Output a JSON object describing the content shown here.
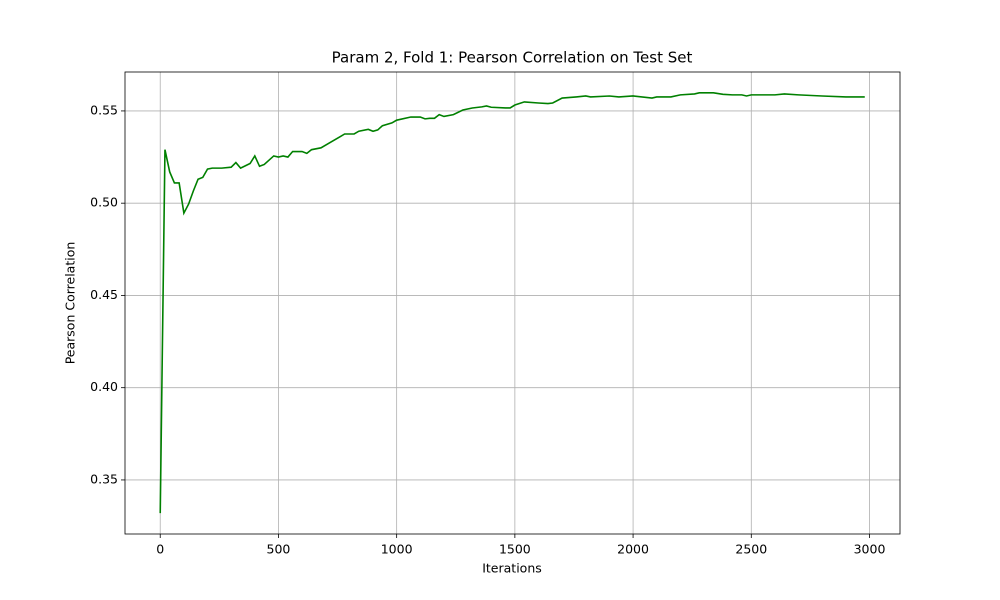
{
  "chart_data": {
    "type": "line",
    "title": "Param 2, Fold 1: Pearson Correlation on Test Set",
    "x_label": "Iterations",
    "y_label": "Pearson Correlation",
    "grid": true,
    "x": [
      0,
      20,
      40,
      60,
      80,
      100,
      120,
      140,
      160,
      180,
      200,
      220,
      260,
      300,
      320,
      340,
      380,
      400,
      420,
      440,
      480,
      500,
      520,
      540,
      560,
      600,
      620,
      640,
      680,
      720,
      760,
      780,
      820,
      840,
      880,
      900,
      920,
      940,
      980,
      1000,
      1060,
      1100,
      1120,
      1140,
      1160,
      1180,
      1200,
      1240,
      1280,
      1320,
      1360,
      1380,
      1400,
      1460,
      1480,
      1500,
      1540,
      1600,
      1640,
      1660,
      1700,
      1760,
      1800,
      1820,
      1900,
      1940,
      2000,
      2080,
      2100,
      2160,
      2200,
      2260,
      2280,
      2340,
      2380,
      2420,
      2460,
      2480,
      2500,
      2600,
      2640,
      2700,
      2800,
      2900,
      2980
    ],
    "series": [
      {
        "name": "Pearson Correlation",
        "color": "#008000",
        "values": [
          0.332,
          0.529,
          0.517,
          0.511,
          0.511,
          0.4946,
          0.4995,
          0.5066,
          0.513,
          0.514,
          0.5185,
          0.519,
          0.519,
          0.5195,
          0.522,
          0.519,
          0.5215,
          0.5256,
          0.52,
          0.521,
          0.5256,
          0.525,
          0.5256,
          0.525,
          0.528,
          0.528,
          0.527,
          0.529,
          0.53,
          0.533,
          0.536,
          0.5375,
          0.5375,
          0.539,
          0.54,
          0.539,
          0.5397,
          0.542,
          0.5435,
          0.545,
          0.5467,
          0.5467,
          0.5457,
          0.546,
          0.546,
          0.548,
          0.547,
          0.548,
          0.5505,
          0.5516,
          0.5522,
          0.5527,
          0.552,
          0.5516,
          0.5516,
          0.5532,
          0.5549,
          0.5543,
          0.554,
          0.5543,
          0.557,
          0.5576,
          0.5581,
          0.5576,
          0.5581,
          0.5576,
          0.5581,
          0.557,
          0.5576,
          0.5576,
          0.5587,
          0.5592,
          0.5598,
          0.5598,
          0.559,
          0.5587,
          0.5587,
          0.5581,
          0.5587,
          0.5587,
          0.5592,
          0.5587,
          0.5581,
          0.5576,
          0.5576
        ]
      }
    ],
    "xlim": [
      -149,
      3129
    ],
    "ylim": [
      0.3207,
      0.5711
    ],
    "xticks": [
      0,
      500,
      1000,
      1500,
      2000,
      2500,
      3000
    ],
    "yticks": [
      0.35,
      {
        "value": 0.4,
        "label": "0.40"
      },
      0.45,
      {
        "value": 0.5,
        "label": "0.50"
      },
      0.55
    ]
  }
}
